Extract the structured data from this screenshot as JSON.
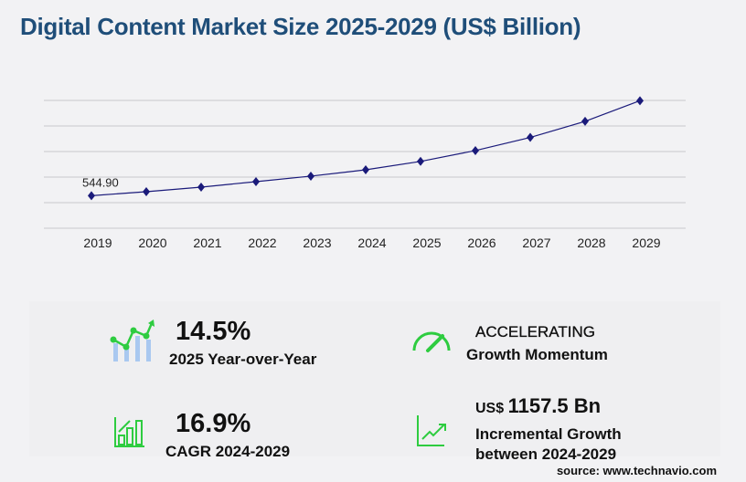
{
  "title": "Digital Content Market Size 2025-2029 (US$ Billion)",
  "chart_data": {
    "type": "line",
    "title": "Digital Content Market Size 2025-2029 (US$ Billion)",
    "categories": [
      "2019",
      "2020",
      "2021",
      "2022",
      "2023",
      "2024",
      "2025",
      "2026",
      "2027",
      "2028",
      "2029"
    ],
    "values": [
      544.9,
      611,
      688,
      780,
      872,
      978,
      1119,
      1300,
      1520,
      1790,
      2135
    ],
    "data_labels": {
      "0": "544.90"
    },
    "ylim": [
      0,
      2140
    ],
    "grid": true,
    "line_color": "#1a1a7a"
  },
  "stats": {
    "yoy_value": "14.5%",
    "yoy_label": "2025 Year-over-Year",
    "momentum_value": "ACCELERATING",
    "momentum_label": "Growth Momentum",
    "cagr_value": "16.9%",
    "cagr_label": "CAGR 2024-2029",
    "incr_prefix": "US$",
    "incr_value": "1157.5 Bn",
    "incr_label1": "Incremental Growth",
    "incr_label2": "between 2024-2029"
  },
  "source": "source: www.technavio.com",
  "colors": {
    "title": "#1f4e79",
    "icon_green": "#2ecc40",
    "icon_blue": "#a9c8f0"
  }
}
